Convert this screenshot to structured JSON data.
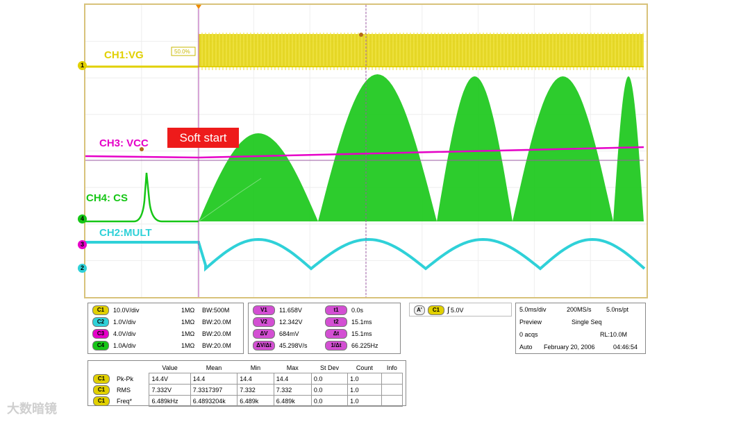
{
  "traces": {
    "ch1": {
      "label": "CH1:VG",
      "color": "#e1d000",
      "marker": "1",
      "cursor_label": "50.0%"
    },
    "ch3": {
      "label": "CH3: VCC",
      "color": "#e600c8",
      "marker": "3"
    },
    "ch4": {
      "label": "CH4: CS",
      "color": "#16c616",
      "marker": "4"
    },
    "ch2": {
      "label": "CH2:MULT",
      "color": "#2fd1d8",
      "marker": "2"
    }
  },
  "annotation": {
    "soft_start": "Soft start"
  },
  "channels_panel": [
    {
      "badge": "C1",
      "color": "#e1d000",
      "scale": "10.0V/div",
      "imp": "1MΩ",
      "bw": "BW:500M"
    },
    {
      "badge": "C2",
      "color": "#2fd1d8",
      "scale": "1.0V/div",
      "imp": "1MΩ",
      "bw": "BW:20.0M"
    },
    {
      "badge": "C3",
      "color": "#e600c8",
      "scale": "4.0V/div",
      "imp": "1MΩ",
      "bw": "BW:20.0M"
    },
    {
      "badge": "C4",
      "color": "#16c616",
      "scale": "1.0A/div",
      "imp": "1MΩ",
      "bw": "BW:20.0M"
    }
  ],
  "cursor_panel": {
    "left": [
      {
        "badge": "V1",
        "value": "11.658V"
      },
      {
        "badge": "V2",
        "value": "12.342V"
      },
      {
        "badge": "ΔV",
        "value": "684mV"
      },
      {
        "badge": "ΔV/Δt",
        "value": "45.298V/s"
      }
    ],
    "right": [
      {
        "badge": "t1",
        "value": "0.0s"
      },
      {
        "badge": "t2",
        "value": "15.1ms"
      },
      {
        "badge": "Δt",
        "value": "15.1ms"
      },
      {
        "badge": "1/Δt",
        "value": "66.225Hz"
      }
    ],
    "badge_color": "#d34fd3"
  },
  "trigger": {
    "badge_a": "A'",
    "badge_c": "C1",
    "slope": "∫",
    "level": "5.0V"
  },
  "timebase": {
    "horiz": "5.0ms/div",
    "rate": "200MS/s",
    "resolution": "5.0ns/pt",
    "mode": "Preview",
    "seq": "Single Seq",
    "acqs": "0 acqs",
    "rl": "RL:10.0M",
    "auto": "Auto",
    "date": "February 20, 2006",
    "time": "04:46:54"
  },
  "measurements": {
    "headers": [
      "",
      "Value",
      "Mean",
      "Min",
      "Max",
      "St Dev",
      "Count",
      "Info"
    ],
    "rows": [
      {
        "badge": "C1",
        "name": "Pk-Pk",
        "cells": [
          "14.4V",
          "14.4",
          "14.4",
          "14.4",
          "0.0",
          "1.0",
          ""
        ]
      },
      {
        "badge": "C1",
        "name": "RMS",
        "cells": [
          "7.332V",
          "7.3317397",
          "7.332",
          "7.332",
          "0.0",
          "1.0",
          ""
        ]
      },
      {
        "badge": "C1",
        "name": "Freq*",
        "cells": [
          "6.489kHz",
          "6.4893204k",
          "6.489k",
          "6.489k",
          "0.0",
          "1.0",
          ""
        ]
      }
    ]
  },
  "watermark": "大数暗镜"
}
